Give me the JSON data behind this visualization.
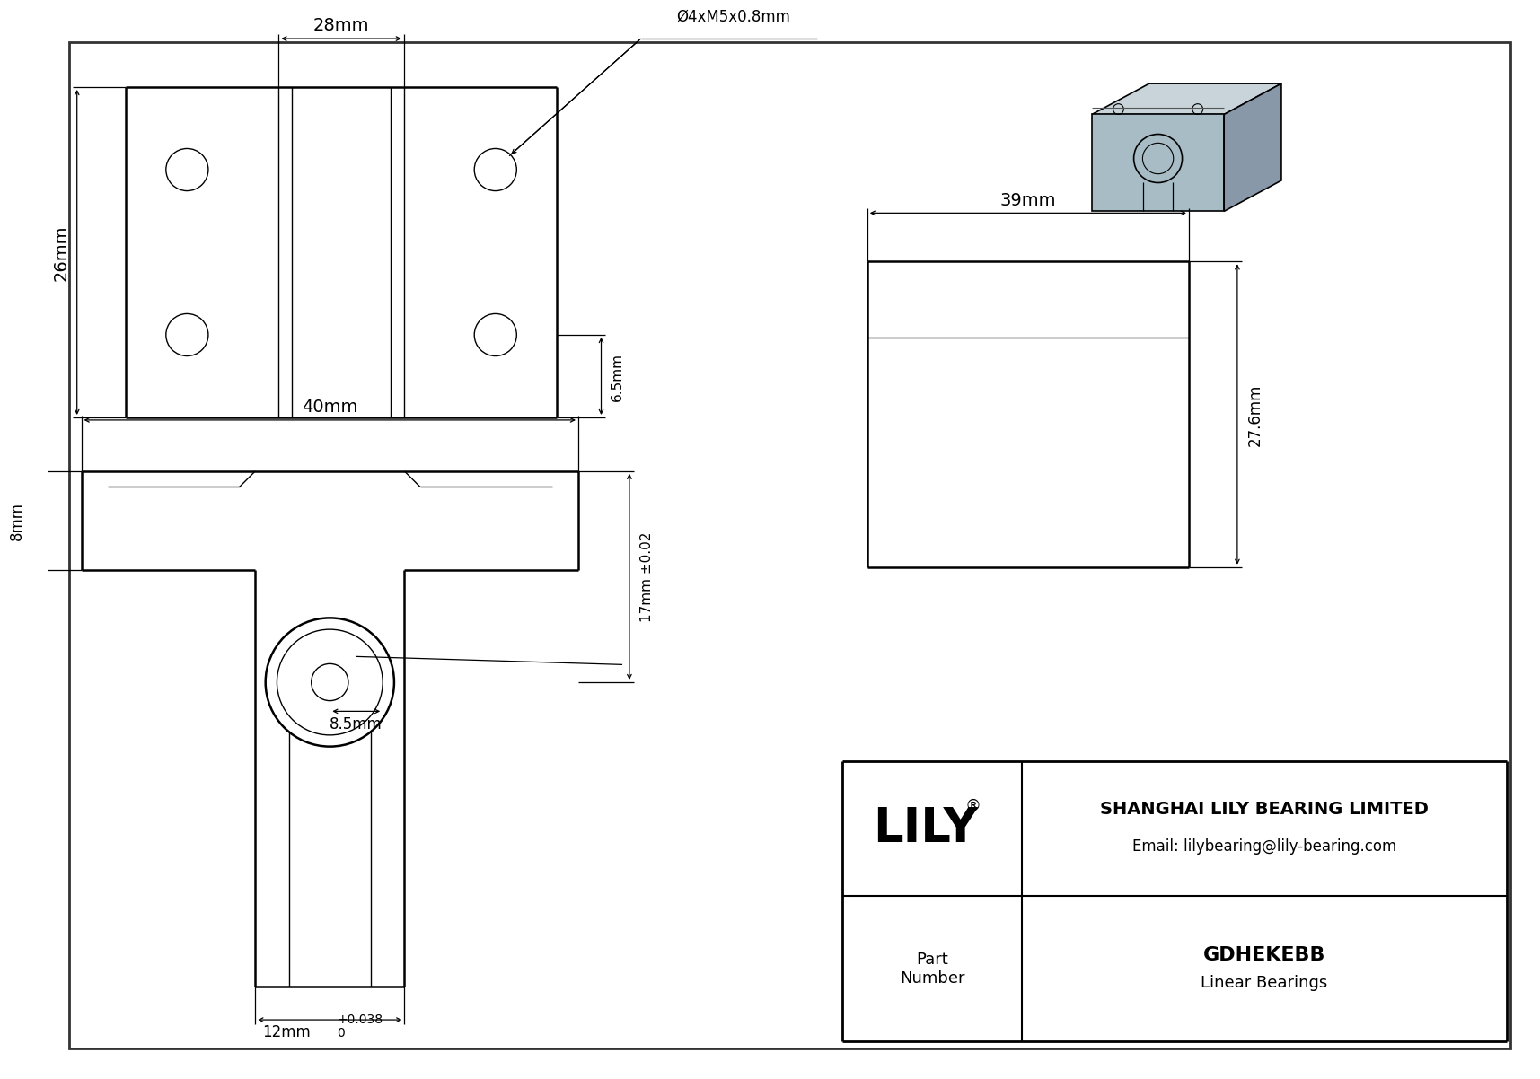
{
  "bg_color": "#ffffff",
  "line_color": "#000000",
  "company": "SHANGHAI LILY BEARING LIMITED",
  "email": "Email: lilybearing@lily-bearing.com",
  "part_number": "GDHEKEBB",
  "part_category": "Linear Bearings",
  "label_28mm": "28mm",
  "label_26mm": "26mm",
  "label_40mm": "40mm",
  "label_8mm": "8mm",
  "label_17mm": "17mm ±0.02",
  "label_6p5mm": "6.5mm",
  "label_hole": "Ø4xM5x0.8mm",
  "label_39mm": "39mm",
  "label_27p6mm": "27.6mm",
  "label_8p5mm": "8.5mm",
  "label_12mm": "12mm",
  "label_tol_pos": "+0.038",
  "label_tol_zero": "0",
  "iso_top_color": "#c8d4da",
  "iso_front_color": "#a8bcc6",
  "iso_side_color": "#8898a8",
  "border_inner_color": "#444444"
}
